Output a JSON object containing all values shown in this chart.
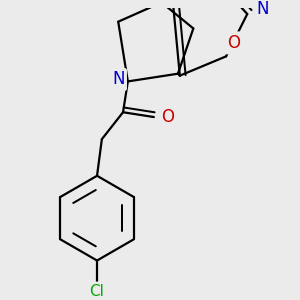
{
  "bg_color": "#ebebeb",
  "bond_color": "#000000",
  "bond_width": 1.6,
  "atom_colors": {
    "N": "#0000cc",
    "O": "#cc0000",
    "Cl": "#00aa00"
  }
}
